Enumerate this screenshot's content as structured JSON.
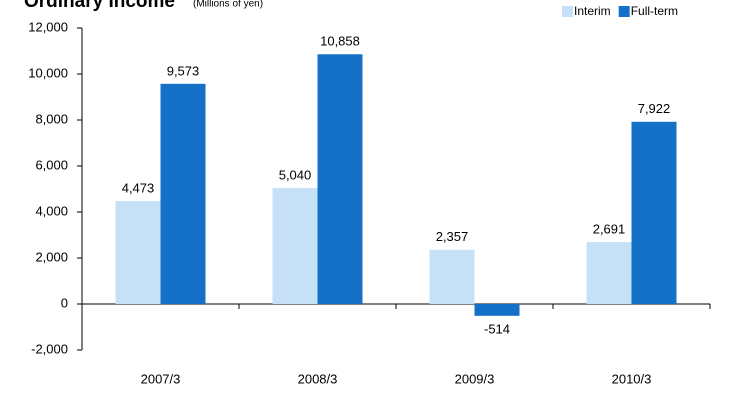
{
  "chart_data": {
    "type": "bar",
    "title": "Ordinary Income",
    "subtitle": "(Millions of yen)",
    "categories": [
      "2007/3",
      "2008/3",
      "2009/3",
      "2010/3"
    ],
    "series": [
      {
        "name": "Interim",
        "color": "#c5e0f7",
        "values": [
          4473,
          5040,
          2357,
          2691
        ],
        "value_labels": [
          "4,473",
          "5,040",
          "2,357",
          "2,691"
        ]
      },
      {
        "name": "Full-term",
        "color": "#1570c8",
        "values": [
          9573,
          10858,
          -514,
          7922
        ],
        "value_labels": [
          "9,573",
          "10,858",
          "-514",
          "7,922"
        ]
      }
    ],
    "ylim": [
      -2000,
      12000
    ],
    "yticks": [
      {
        "value": -2000,
        "label": "-2,000"
      },
      0,
      {
        "value": 2000,
        "label": "2,000"
      },
      {
        "value": 4000,
        "label": "4,000"
      },
      {
        "value": 6000,
        "label": "6,000"
      },
      {
        "value": 8000,
        "label": "8,000"
      },
      {
        "value": 10000,
        "label": "10,000"
      },
      {
        "value": 12000,
        "label": "12,000"
      }
    ],
    "grid": false,
    "legend": "top-right"
  }
}
